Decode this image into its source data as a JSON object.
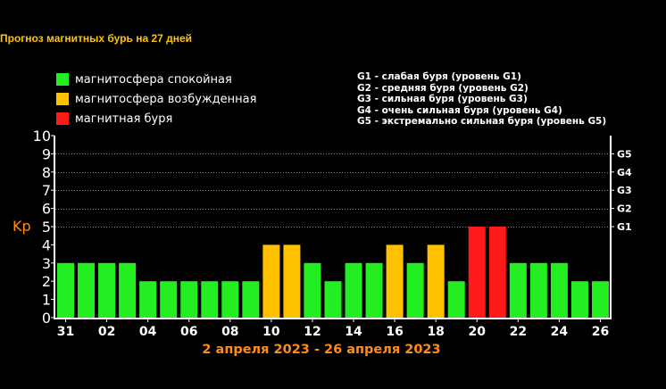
{
  "title": "Прогноз магнитных бурь на 27 дней",
  "legend": [
    {
      "label": "магнитосфера спокойная",
      "color": "#22ee22"
    },
    {
      "label": "магнитосфера возбужденная",
      "color": "#ffc000"
    },
    {
      "label": "магнитная буря",
      "color": "#ff1a1a"
    }
  ],
  "storm_levels": [
    "G1 - слабая буря (уровень G1)",
    "G2 - средняя буря (уровень G2)",
    "G3 - сильная буря (уровень G3)",
    "G4 - очень сильная буря (уровень G4)",
    "G5 - экстремально сильная буря (уровень G5)"
  ],
  "date_range": "2 апреля 2023 - 26 апреля 2023",
  "chart_data": {
    "type": "bar",
    "ylabel": "Kp",
    "ylim": [
      0,
      10
    ],
    "yticks": [
      0,
      1,
      2,
      3,
      4,
      5,
      6,
      7,
      8,
      9,
      10
    ],
    "right_axis": [
      {
        "value": 5,
        "label": "G1"
      },
      {
        "value": 6,
        "label": "G2"
      },
      {
        "value": 7,
        "label": "G3"
      },
      {
        "value": 8,
        "label": "G4"
      },
      {
        "value": 9,
        "label": "G5"
      }
    ],
    "x_tick_labels": [
      "31",
      "02",
      "04",
      "06",
      "08",
      "10",
      "12",
      "14",
      "16",
      "18",
      "20",
      "22",
      "24",
      "26"
    ],
    "values": [
      3,
      3,
      3,
      3,
      2,
      2,
      2,
      2,
      2,
      2,
      4,
      4,
      3,
      2,
      3,
      3,
      4,
      3,
      4,
      2,
      5,
      5,
      3,
      3,
      3,
      2,
      2
    ],
    "bar_colors": [
      "#22ee22",
      "#22ee22",
      "#22ee22",
      "#22ee22",
      "#22ee22",
      "#22ee22",
      "#22ee22",
      "#22ee22",
      "#22ee22",
      "#22ee22",
      "#ffc000",
      "#ffc000",
      "#22ee22",
      "#22ee22",
      "#22ee22",
      "#22ee22",
      "#ffc000",
      "#22ee22",
      "#ffc000",
      "#22ee22",
      "#ff1a1a",
      "#ff1a1a",
      "#22ee22",
      "#22ee22",
      "#22ee22",
      "#22ee22",
      "#22ee22"
    ],
    "grid": true,
    "colors": {
      "axis": "#ffffff",
      "ylabel": "#ff8c1a",
      "grid": "#888888"
    }
  }
}
